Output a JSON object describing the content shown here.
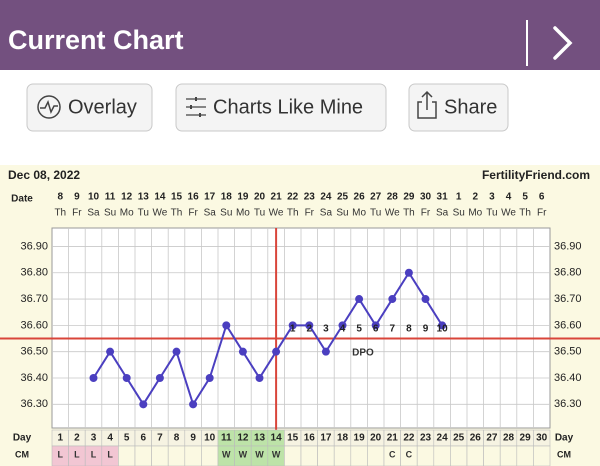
{
  "header": {
    "title": "Current Chart"
  },
  "buttons": [
    "Overlay",
    "Charts Like Mine",
    "Share"
  ],
  "chart_data": {
    "type": "line",
    "date_label": "Dec 08, 2022",
    "site": "FertilityFriend.com",
    "date_row_label": "Date",
    "day_row_label": "Day",
    "cm_row_label": "CM",
    "dpo_label": "DPO",
    "dates": [
      8,
      9,
      10,
      11,
      12,
      13,
      14,
      15,
      16,
      17,
      18,
      19,
      20,
      21,
      22,
      23,
      24,
      25,
      26,
      27,
      28,
      29,
      30,
      31,
      1,
      2,
      3,
      4,
      5,
      6
    ],
    "weekdays": [
      "Th",
      "Fr",
      "Sa",
      "Su",
      "Mo",
      "Tu",
      "We",
      "Th",
      "Fr",
      "Sa",
      "Su",
      "Mo",
      "Tu",
      "We",
      "Th",
      "Fr",
      "Sa",
      "Su",
      "Mo",
      "Tu",
      "We",
      "Th",
      "Fr",
      "Sa",
      "Su",
      "Mo",
      "Tu",
      "We",
      "Th",
      "Fr"
    ],
    "categories": [
      1,
      2,
      3,
      4,
      5,
      6,
      7,
      8,
      9,
      10,
      11,
      12,
      13,
      14,
      15,
      16,
      17,
      18,
      19,
      20,
      21,
      22,
      23,
      24,
      25,
      26,
      27,
      28,
      29,
      30
    ],
    "cm": [
      "L",
      "L",
      "L",
      "L",
      null,
      null,
      null,
      null,
      null,
      null,
      "W",
      "W",
      "W",
      "W",
      null,
      null,
      null,
      null,
      null,
      null,
      "C",
      "C",
      null,
      null,
      null,
      null,
      null,
      null,
      null,
      null
    ],
    "dpo": [
      null,
      null,
      null,
      null,
      null,
      null,
      null,
      null,
      null,
      null,
      null,
      null,
      null,
      null,
      1,
      2,
      3,
      4,
      5,
      6,
      7,
      8,
      9,
      10,
      null,
      null,
      null,
      null,
      null,
      null
    ],
    "series": [
      {
        "name": "Temperature",
        "color": "#4b3fc0",
        "values": [
          null,
          null,
          36.4,
          36.5,
          36.4,
          36.3,
          36.4,
          36.5,
          36.3,
          36.4,
          36.6,
          36.5,
          36.4,
          36.5,
          36.6,
          36.6,
          36.5,
          36.6,
          36.7,
          36.6,
          36.7,
          36.8,
          36.7,
          36.6,
          null,
          null,
          null,
          null,
          null,
          null
        ]
      }
    ],
    "coverline": 36.55,
    "ovulation_day": 14,
    "marker_color": "#d9453a",
    "ylim": [
      36.21,
      36.97
    ],
    "yticks": [
      {
        "value": 36.3,
        "label": "36.30"
      },
      {
        "value": 36.4,
        "label": "36.40"
      },
      {
        "value": 36.5,
        "label": "36.50"
      },
      {
        "value": 36.6,
        "label": "36.60"
      },
      {
        "value": 36.7,
        "label": "36.70"
      },
      {
        "value": 36.8,
        "label": "36.80"
      },
      {
        "value": 36.9,
        "label": "36.90"
      }
    ],
    "grid": true
  }
}
